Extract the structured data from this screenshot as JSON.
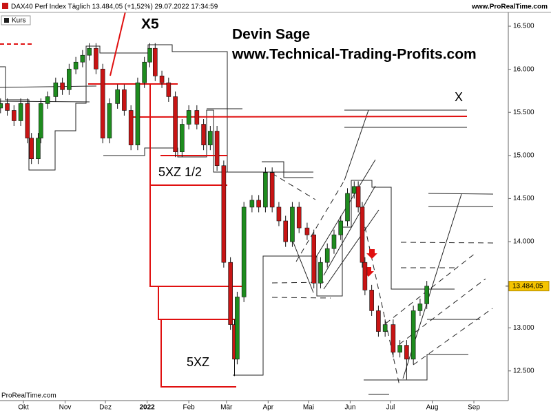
{
  "chart_data": {
    "type": "candlestick",
    "title": "DAX40 Perf Index Täglich 13.484,05 (+1,52%) 29.07.2022 17:34:59",
    "source_top": "www.ProRealTime.com",
    "source_bottom": "ProRealTime.com",
    "legend_label": "Kurs",
    "up_color": "#1e8c1e",
    "down_color": "#c81414",
    "annotations": [
      "X5",
      "Devin Sage",
      "www.Technical-Trading-Profits.com",
      "X",
      "5XZ 1/2",
      "5XZ"
    ],
    "last_price": {
      "value": 13484.05,
      "label": "13.484,05"
    },
    "x": [
      -17,
      -12,
      -7,
      -2,
      3,
      6,
      11,
      13,
      18,
      24,
      29,
      34,
      39,
      44,
      49,
      54,
      59,
      64,
      70,
      75,
      80,
      85,
      90,
      94,
      98,
      103,
      108,
      113,
      118,
      123,
      129,
      134,
      139,
      144,
      149,
      154,
      157,
      159,
      164,
      170,
      175,
      180,
      185,
      190,
      195,
      200,
      205,
      211,
      216,
      221,
      226,
      231,
      236,
      241,
      246,
      249,
      252,
      254,
      259,
      264,
      269,
      275,
      280,
      285,
      290,
      295,
      300
    ],
    "open": [
      15550,
      15602,
      15522,
      15402,
      15602,
      15201,
      14961,
      15201,
      15602,
      15682,
      15843,
      15763,
      16003,
      16083,
      16163,
      16243,
      16003,
      15201,
      15602,
      15763,
      15522,
      15121,
      15843,
      16083,
      16243,
      15923,
      15843,
      15682,
      15041,
      15362,
      15522,
      15362,
      15121,
      15282,
      14881,
      13759,
      13037,
      12636,
      13358,
      14400,
      14480,
      14400,
      14801,
      14400,
      14240,
      13999,
      14400,
      14159,
      14079,
      13518,
      13759,
      13919,
      14079,
      14240,
      14560,
      14640,
      14400,
      13759,
      13438,
      13198,
      12957,
      13037,
      12716,
      12797,
      12636,
      13198,
      13278
    ],
    "high": [
      15662,
      15662,
      15582,
      15662,
      15662,
      15261,
      15261,
      15662,
      15742,
      15903,
      15903,
      16063,
      16143,
      16223,
      16303,
      16303,
      16063,
      15662,
      15823,
      15823,
      15582,
      15903,
      16143,
      16303,
      16303,
      15983,
      15903,
      15742,
      15422,
      15582,
      15582,
      15422,
      15342,
      15342,
      14941,
      13819,
      13097,
      13418,
      14460,
      14540,
      14540,
      14861,
      14861,
      14460,
      14300,
      14460,
      14460,
      14219,
      14139,
      13819,
      13979,
      14139,
      14300,
      14620,
      14700,
      14700,
      14460,
      13819,
      13498,
      13258,
      13097,
      13097,
      12857,
      12857,
      13258,
      13338,
      13544
    ],
    "low": [
      15490,
      15462,
      15342,
      15342,
      15141,
      14901,
      14901,
      15141,
      15542,
      15622,
      15703,
      15703,
      15943,
      16023,
      16103,
      15943,
      15141,
      15141,
      15542,
      15462,
      15061,
      15061,
      15783,
      16023,
      15863,
      15783,
      15622,
      14981,
      14981,
      15302,
      15302,
      15061,
      15061,
      14821,
      13699,
      12977,
      12440,
      12576,
      13298,
      14340,
      14340,
      14340,
      14340,
      14180,
      13939,
      13939,
      14099,
      14019,
      13458,
      13458,
      13699,
      13859,
      14019,
      14180,
      14500,
      14340,
      13699,
      13378,
      13138,
      12897,
      12897,
      12656,
      12656,
      12400,
      12576,
      13138,
      13218
    ],
    "close": [
      15602,
      15522,
      15402,
      15602,
      15201,
      14961,
      15201,
      15602,
      15682,
      15843,
      15763,
      16003,
      16083,
      16163,
      16243,
      16003,
      15201,
      15602,
      15763,
      15522,
      15121,
      15843,
      16083,
      16243,
      15923,
      15843,
      15682,
      15041,
      15362,
      15522,
      15362,
      15121,
      15282,
      14881,
      13759,
      13037,
      12636,
      13358,
      14400,
      14480,
      14400,
      14801,
      14400,
      14240,
      13999,
      14400,
      14159,
      14079,
      13518,
      13759,
      13919,
      14079,
      14240,
      14560,
      14640,
      14400,
      13759,
      13438,
      13198,
      12957,
      13037,
      12716,
      12797,
      12636,
      13198,
      13278,
      13484
    ],
    "xlim": [
      -17.4,
      360.6
    ],
    "xticks": [
      {
        "value": 0,
        "label": "Okt"
      },
      {
        "value": 31,
        "label": "Nov"
      },
      {
        "value": 61,
        "label": "Dez"
      },
      {
        "value": 92,
        "label": "2022"
      },
      {
        "value": 123,
        "label": "Feb"
      },
      {
        "value": 151,
        "label": "Mär"
      },
      {
        "value": 182,
        "label": "Apr"
      },
      {
        "value": 212,
        "label": "Mai"
      },
      {
        "value": 243,
        "label": "Jun"
      },
      {
        "value": 273,
        "label": "Jul"
      },
      {
        "value": 304,
        "label": "Aug"
      },
      {
        "value": 335,
        "label": "Sep"
      }
    ],
    "ylim": [
      12155,
      16660
    ],
    "yticks": [
      {
        "value": 12500,
        "label": "12.500"
      },
      {
        "value": 13000,
        "label": "13.000"
      },
      {
        "value": 13500,
        "label": "13.500"
      },
      {
        "value": 14000,
        "label": "14.000"
      },
      {
        "value": 14500,
        "label": "14.500"
      },
      {
        "value": 15000,
        "label": "15.000"
      },
      {
        "value": 15500,
        "label": "15.500"
      },
      {
        "value": 16000,
        "label": "16.000"
      },
      {
        "value": 16500,
        "label": "16.500"
      }
    ]
  }
}
